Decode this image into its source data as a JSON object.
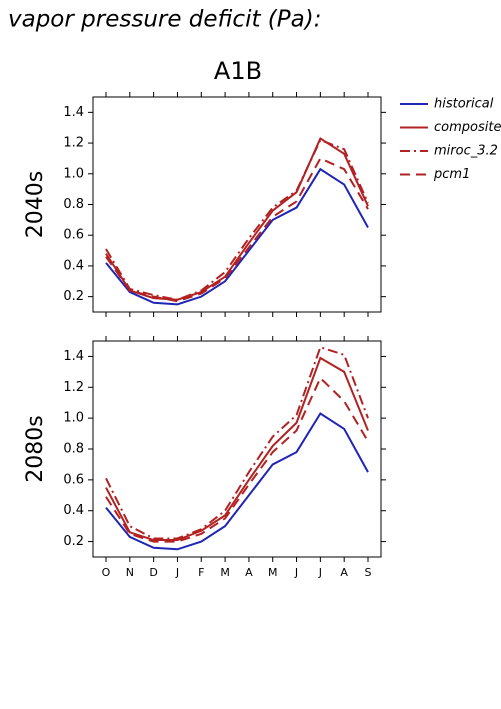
{
  "header": {
    "title": "vapor pressure deficit (Pa):",
    "scenario": "A1B"
  },
  "chart_data": [
    {
      "type": "line",
      "title": "2040s",
      "legend": true,
      "ylim": [
        0.1,
        1.5
      ],
      "yticks": [
        0.2,
        0.4,
        0.6,
        0.8,
        {
          "value": 1,
          "label": "1.0"
        },
        1.2,
        1.4
      ],
      "series": [
        {
          "name": "historical",
          "color": "#1f26b4",
          "dash": "solid",
          "values": [
            0.42,
            0.23,
            0.16,
            0.15,
            0.2,
            0.3,
            0.5,
            0.7,
            0.78,
            1.03,
            0.93,
            0.65
          ]
        },
        {
          "name": "composite",
          "color": "#b22222",
          "dash": "solid",
          "values": [
            0.48,
            0.24,
            0.19,
            0.18,
            0.23,
            0.33,
            0.55,
            0.76,
            0.88,
            1.23,
            1.13,
            0.79
          ]
        },
        {
          "name": "miroc_3.2",
          "color": "#b22222",
          "dash": "dashdot",
          "values": [
            0.51,
            0.25,
            0.21,
            0.18,
            0.24,
            0.36,
            0.58,
            0.78,
            0.89,
            1.22,
            1.16,
            0.81
          ]
        },
        {
          "name": "pcm1",
          "color": "#b22222",
          "dash": "dash",
          "values": [
            0.46,
            0.24,
            0.2,
            0.17,
            0.22,
            0.32,
            0.52,
            0.72,
            0.82,
            1.1,
            1.03,
            0.77
          ]
        }
      ]
    },
    {
      "type": "line",
      "title": "2080s",
      "legend": false,
      "categories": [
        "O",
        "N",
        "D",
        "J",
        "F",
        "M",
        "A",
        "M",
        "J",
        "J",
        "A",
        "S"
      ],
      "ylim": [
        0.1,
        1.5
      ],
      "yticks": [
        0.2,
        0.4,
        0.6,
        0.8,
        {
          "value": 1,
          "label": "1.0"
        },
        1.2,
        1.4
      ],
      "series": [
        {
          "color": "#1f26b4",
          "dash": "solid",
          "values": [
            0.42,
            0.23,
            0.16,
            0.15,
            0.2,
            0.3,
            0.5,
            0.7,
            0.78,
            1.03,
            0.93,
            0.65
          ]
        },
        {
          "color": "#b22222",
          "dash": "solid",
          "values": [
            0.55,
            0.26,
            0.21,
            0.21,
            0.27,
            0.37,
            0.6,
            0.82,
            0.97,
            1.39,
            1.3,
            0.92
          ]
        },
        {
          "color": "#b22222",
          "dash": "dashdot",
          "values": [
            0.61,
            0.3,
            0.22,
            0.22,
            0.28,
            0.4,
            0.65,
            0.88,
            1.02,
            1.46,
            1.41,
            1.0
          ]
        },
        {
          "color": "#b22222",
          "dash": "dash",
          "values": [
            0.49,
            0.25,
            0.2,
            0.2,
            0.25,
            0.35,
            0.57,
            0.78,
            0.92,
            1.26,
            1.11,
            0.85
          ]
        }
      ]
    }
  ]
}
